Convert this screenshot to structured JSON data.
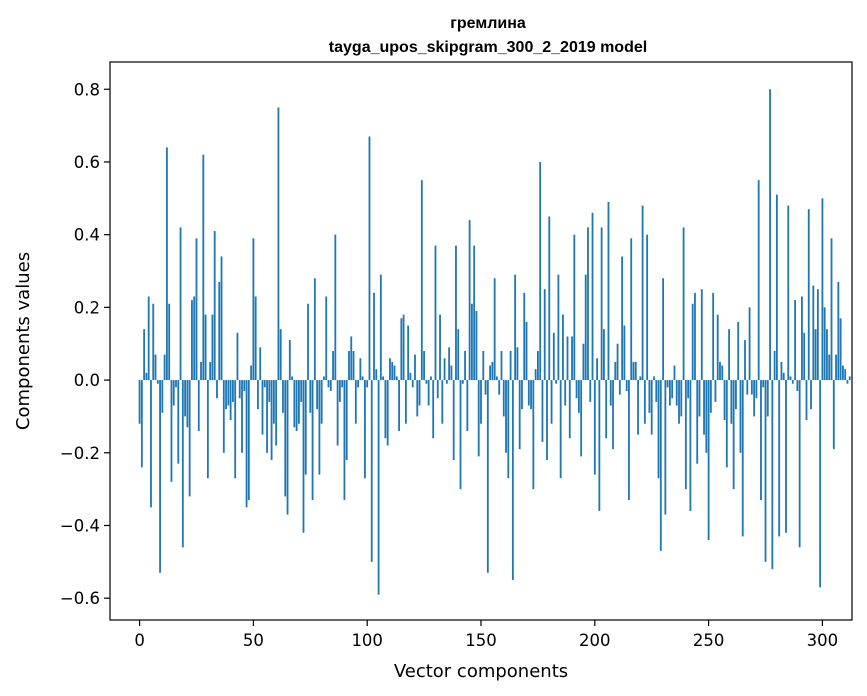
{
  "chart_data": {
    "type": "bar",
    "title": "гремлина",
    "subtitle": "tayga_upos_skipgram_300_2_2019 model",
    "xlabel": "Vector components",
    "ylabel": "Components values",
    "xlim": [
      -13,
      313
    ],
    "ylim": [
      -0.66,
      0.875
    ],
    "xticks": [
      0,
      50,
      100,
      150,
      200,
      250,
      300
    ],
    "yticks": [
      -0.6,
      -0.4,
      -0.2,
      0.0,
      0.2,
      0.4,
      0.6,
      0.8
    ],
    "ytick_labels": [
      "−0.6",
      "−0.4",
      "−0.2",
      "0.0",
      "0.2",
      "0.4",
      "0.6",
      "0.8"
    ],
    "bar_color": "#1f77b4",
    "grid": false,
    "x_start": 0,
    "values": [
      -0.12,
      -0.24,
      0.14,
      0.02,
      0.23,
      -0.35,
      0.21,
      0.07,
      -0.01,
      -0.53,
      -0.09,
      0.07,
      0.64,
      0.21,
      -0.28,
      -0.07,
      -0.02,
      -0.23,
      0.42,
      -0.46,
      -0.1,
      -0.13,
      -0.32,
      0.22,
      0.23,
      0.39,
      -0.14,
      0.05,
      0.62,
      0.18,
      -0.27,
      0.05,
      0.18,
      0.41,
      -0.05,
      0.27,
      0.34,
      -0.2,
      -0.08,
      -0.07,
      -0.11,
      -0.06,
      -0.27,
      0.13,
      -0.05,
      -0.2,
      -0.03,
      -0.35,
      -0.33,
      0.04,
      0.39,
      0.23,
      -0.08,
      0.09,
      -0.15,
      -0.02,
      -0.2,
      -0.06,
      -0.22,
      -0.12,
      -0.18,
      0.75,
      0.14,
      -0.09,
      -0.32,
      -0.37,
      0.11,
      0.01,
      -0.13,
      -0.14,
      -0.12,
      -0.06,
      -0.42,
      -0.26,
      0.21,
      -0.09,
      -0.33,
      0.28,
      -0.08,
      -0.26,
      -0.12,
      0.01,
      0.23,
      -0.02,
      -0.03,
      0.08,
      0.4,
      -0.18,
      -0.06,
      -0.02,
      -0.33,
      -0.22,
      0.08,
      0.12,
      0.08,
      -0.12,
      -0.02,
      0.06,
      0.01,
      -0.27,
      -0.02,
      0.67,
      -0.5,
      0.24,
      0.03,
      -0.59,
      0.29,
      0.01,
      -0.16,
      -0.18,
      0.06,
      0.05,
      0.04,
      0.01,
      -0.14,
      0.17,
      0.18,
      -0.12,
      0.15,
      0.02,
      -0.02,
      0.07,
      -0.1,
      -0.07,
      0.55,
      0.08,
      -0.01,
      -0.07,
      0.01,
      -0.16,
      0.37,
      -0.05,
      0.18,
      -0.12,
      0.06,
      -0.01,
      0.09,
      0.04,
      -0.22,
      0.37,
      0.14,
      -0.3,
      -0.01,
      0.08,
      -0.14,
      0.44,
      0.21,
      0.37,
      0.19,
      -0.21,
      -0.12,
      0.08,
      -0.04,
      -0.53,
      0.04,
      0.05,
      0.28,
      0.01,
      -0.04,
      0.08,
      -0.1,
      -0.2,
      -0.27,
      0.08,
      -0.55,
      0.29,
      0.09,
      -0.19,
      -0.08,
      0.24,
      0.16,
      -0.07,
      -0.08,
      -0.3,
      0.03,
      0.08,
      0.6,
      -0.17,
      0.25,
      -0.22,
      0.45,
      -0.12,
      0.13,
      -0.01,
      0.29,
      -0.27,
      0.18,
      -0.07,
      0.12,
      -0.16,
      0.12,
      0.4,
      -0.05,
      -0.09,
      -0.21,
      0.1,
      0.29,
      0.42,
      -0.06,
      0.46,
      -0.26,
      0.06,
      -0.36,
      0.42,
      0.14,
      -0.16,
      0.49,
      -0.07,
      -0.19,
      0.05,
      0.1,
      -0.04,
      0.34,
      0.15,
      -0.03,
      -0.33,
      0.39,
      0.05,
      0.05,
      -0.15,
      0.01,
      0.48,
      -0.12,
      0.4,
      -0.09,
      -0.15,
      0.01,
      -0.06,
      -0.27,
      -0.47,
      0.28,
      -0.37,
      -0.02,
      -0.07,
      -0.05,
      0.04,
      -0.07,
      -0.12,
      -0.1,
      0.42,
      -0.3,
      -0.05,
      -0.36,
      0.21,
      0.24,
      -0.23,
      -0.1,
      0.25,
      -0.15,
      -0.2,
      -0.44,
      -0.09,
      0.24,
      -0.06,
      0.18,
      0.05,
      0.04,
      -0.11,
      -0.24,
      0.14,
      -0.12,
      -0.3,
      -0.08,
      0.16,
      -0.2,
      -0.43,
      0.11,
      -0.04,
      0.2,
      -0.04,
      -0.1,
      -0.05,
      0.55,
      -0.33,
      -0.02,
      -0.5,
      -0.1,
      0.8,
      -0.52,
      0.08,
      0.51,
      -0.43,
      0.05,
      0.02,
      -0.42,
      0.48,
      0.01,
      -0.01,
      0.22,
      -0.03,
      -0.46,
      0.23,
      0.13,
      -0.11,
      0.47,
      -0.08,
      0.26,
      0.14,
      0.25,
      -0.57,
      0.5,
      0.2,
      0.14,
      0.07,
      0.39,
      -0.19,
      0.07,
      0.27,
      0.17,
      0.04,
      0.03,
      -0.01,
      0.01
    ]
  }
}
